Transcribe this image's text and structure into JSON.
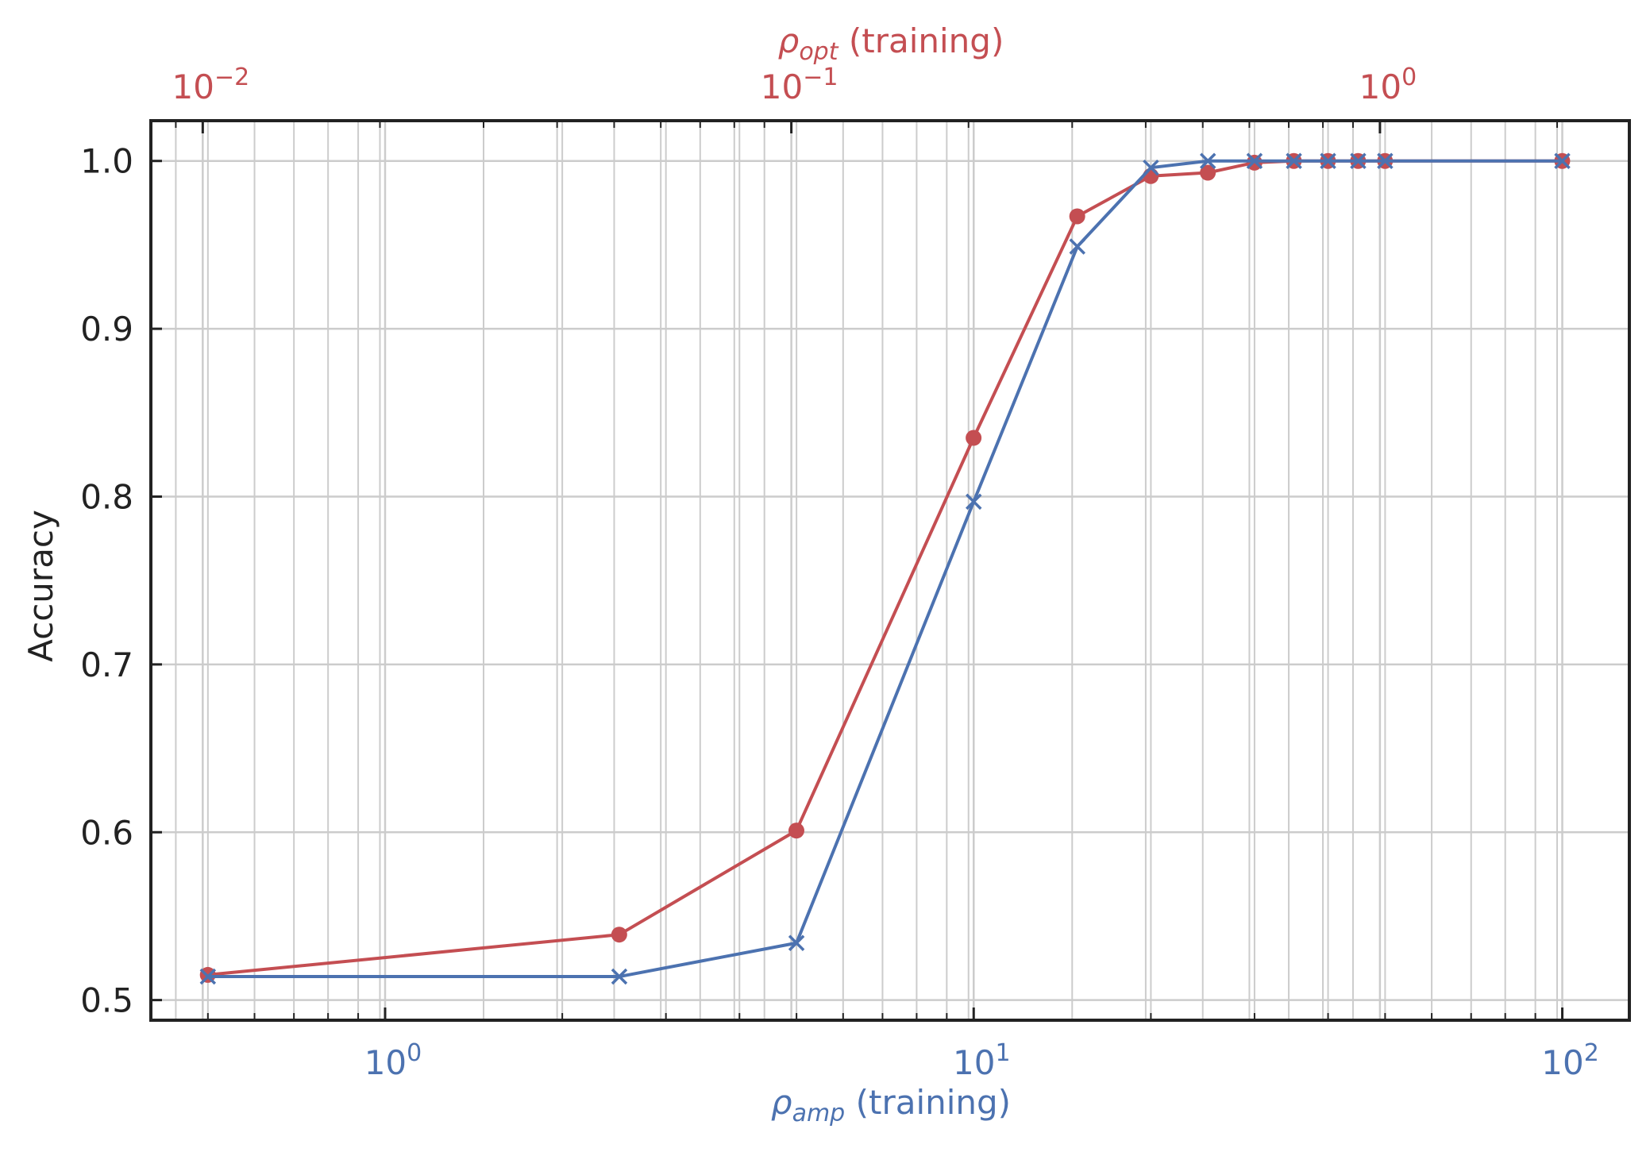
{
  "chart_data": {
    "type": "line",
    "title": "",
    "ylabel": "Accuracy",
    "x_bottom": {
      "label_symbol": "ρ",
      "label_sub": "amp",
      "label_rest": " (training)",
      "scale": "log",
      "range": [
        0.4,
        130
      ],
      "ticks": [
        {
          "value": 1,
          "base": "10",
          "exp": "0"
        },
        {
          "value": 10,
          "base": "10",
          "exp": "1"
        },
        {
          "value": 100,
          "base": "10",
          "exp": "2"
        }
      ],
      "color": "#4c72b0"
    },
    "x_top": {
      "label_symbol": "ρ",
      "label_sub": "opt",
      "label_rest": " (training)",
      "scale": "log",
      "ticks": [
        {
          "value": 0.01,
          "base": "10",
          "exp": "−2"
        },
        {
          "value": 0.1,
          "base": "10",
          "exp": "−1"
        },
        {
          "value": 1,
          "base": "10",
          "exp": "0"
        }
      ],
      "color": "#c44e52"
    },
    "y": {
      "range": [
        0.488,
        1.024
      ],
      "ticks": [
        "0.5",
        "0.6",
        "0.7",
        "0.8",
        "0.9",
        "1.0"
      ]
    },
    "grid": true,
    "series": [
      {
        "color": "#c44e52",
        "marker": "circle",
        "axis": "top",
        "x": [
          0.0102,
          0.051,
          0.102,
          0.204,
          0.306,
          0.408,
          0.51,
          0.612,
          0.714,
          0.816,
          0.918,
          1.02,
          2.04
        ],
        "y": [
          0.515,
          0.539,
          0.601,
          0.835,
          0.967,
          0.991,
          0.993,
          0.999,
          1.0,
          1.0,
          1.0,
          1.0,
          1.0
        ]
      },
      {
        "color": "#4c72b0",
        "marker": "x",
        "axis": "bottom",
        "x": [
          0.5,
          2.5,
          5,
          10,
          15,
          20,
          25,
          30,
          35,
          40,
          45,
          50,
          100
        ],
        "y": [
          0.514,
          0.514,
          0.534,
          0.797,
          0.949,
          0.996,
          1.0,
          1.0,
          1.0,
          1.0,
          1.0,
          1.0,
          1.0
        ]
      }
    ]
  }
}
